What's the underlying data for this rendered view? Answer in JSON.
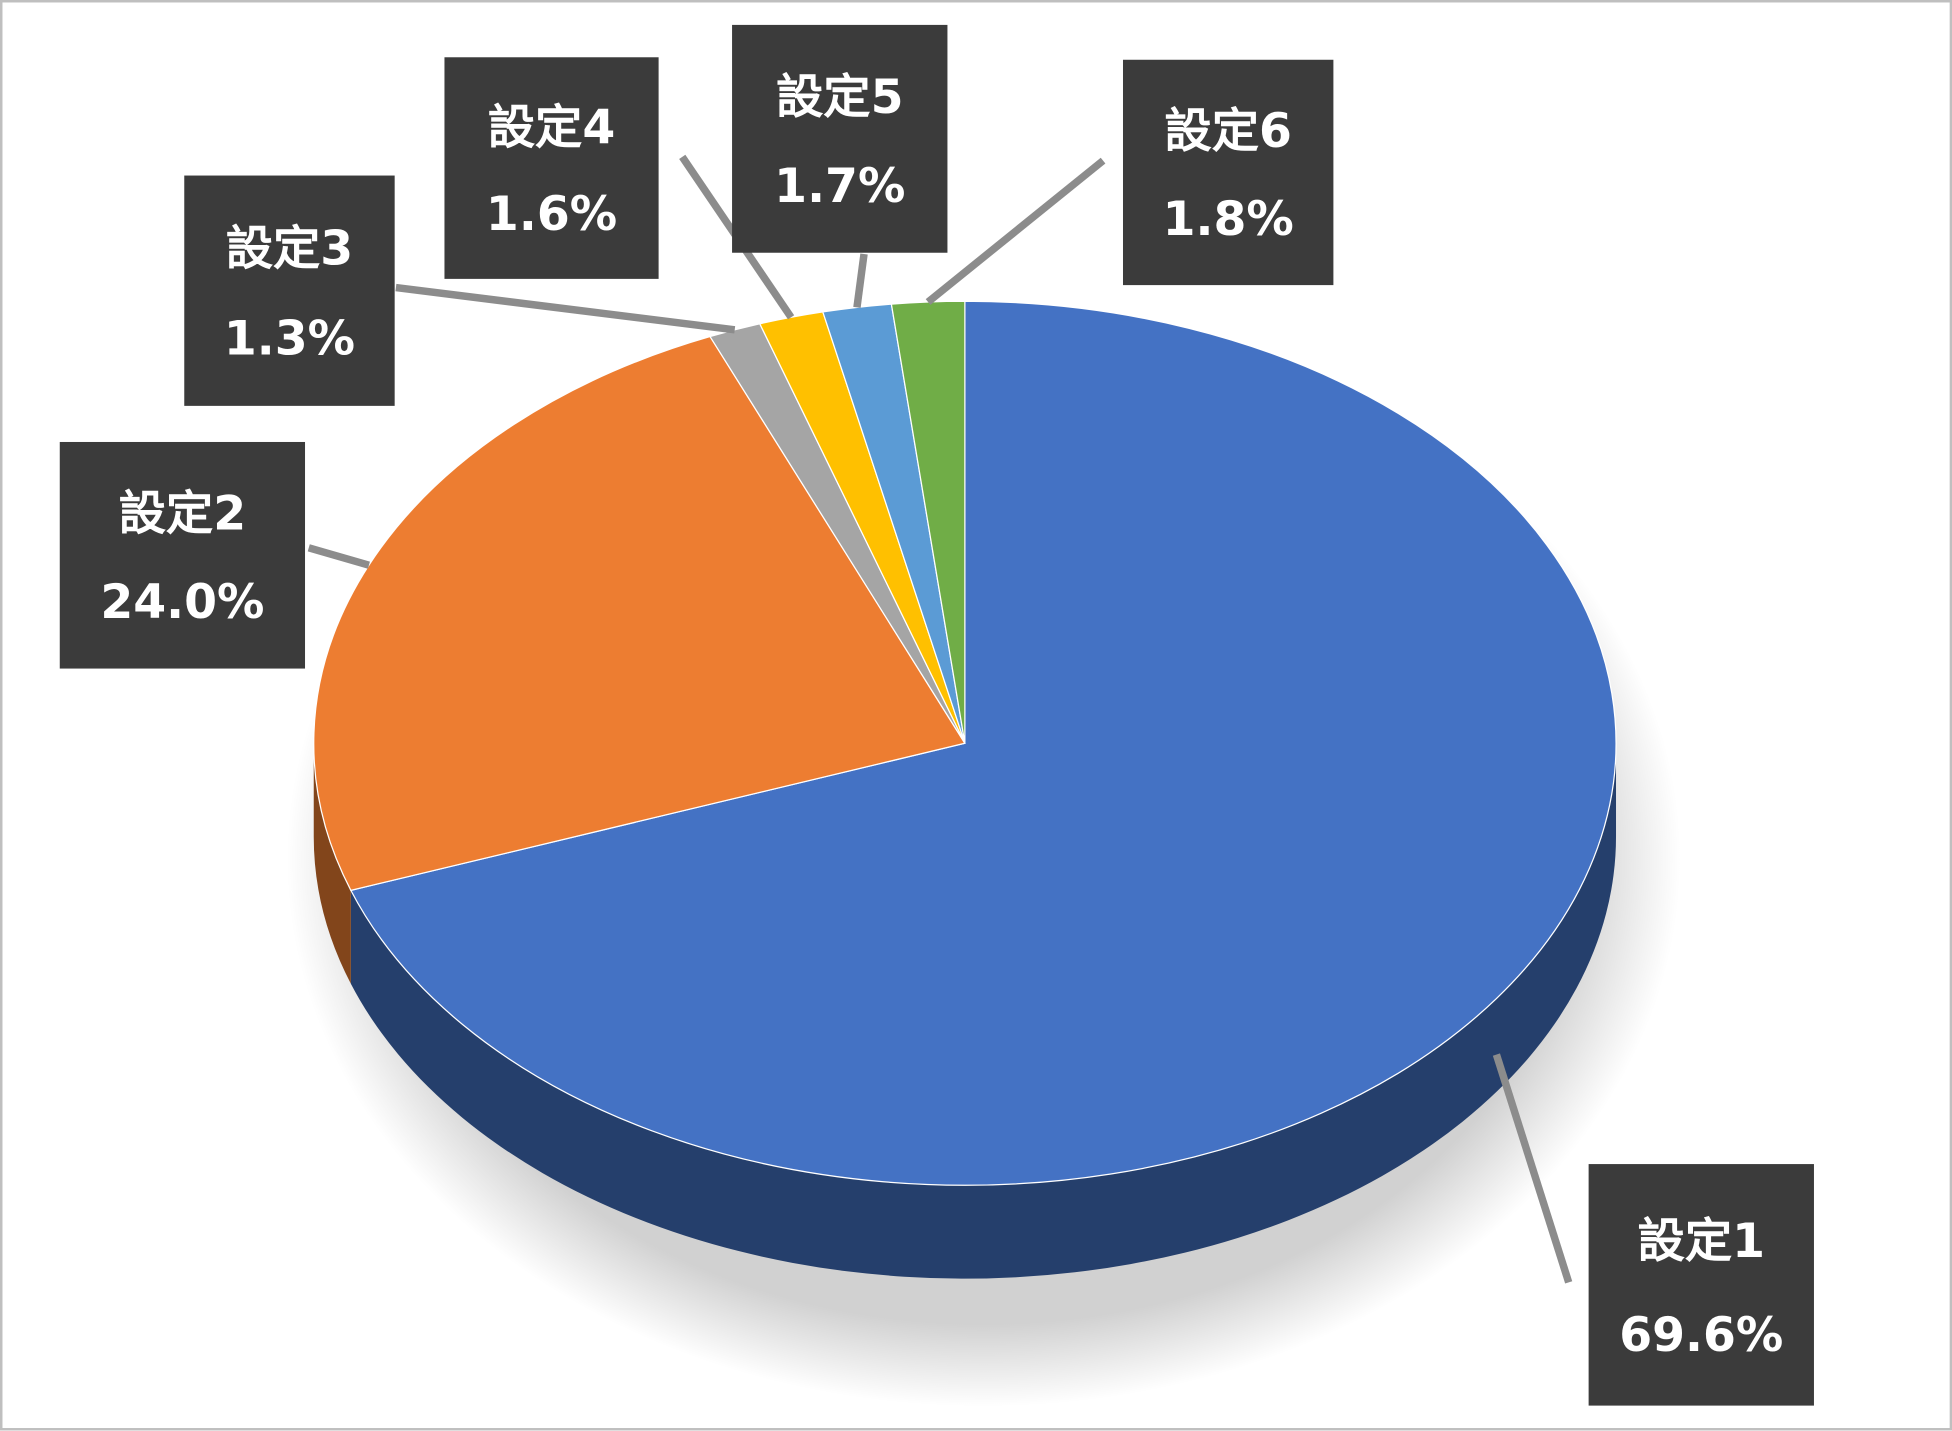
{
  "chart_data": {
    "type": "pie3d",
    "categories": [
      "設定1",
      "設定2",
      "設定3",
      "設定4",
      "設定5",
      "設定6"
    ],
    "values": [
      69.6,
      24.0,
      1.3,
      1.6,
      1.7,
      1.8
    ],
    "value_labels": [
      "69.6%",
      "24.0%",
      "1.3%",
      "1.6%",
      "1.7%",
      "1.8%"
    ],
    "colors": [
      "#4472c4",
      "#ed7d31",
      "#a5a5a5",
      "#ffc000",
      "#5b9bd5",
      "#70ad47"
    ]
  }
}
